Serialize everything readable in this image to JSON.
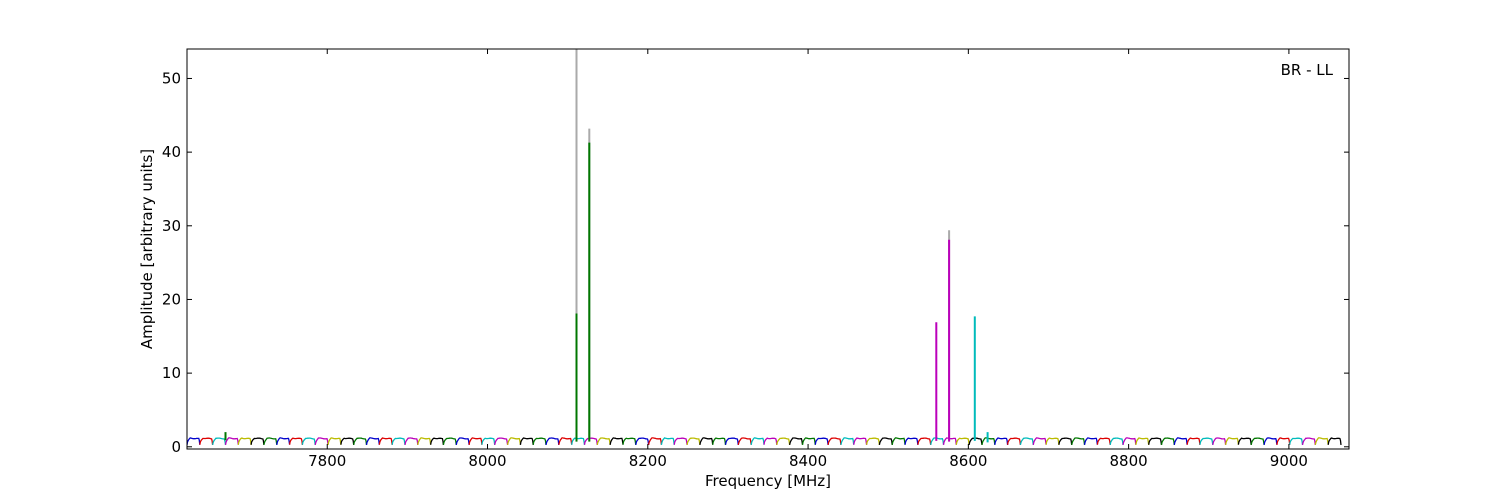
{
  "chart_data": {
    "type": "line",
    "annotation": "BR - LL",
    "xlabel": "Frequency [MHz]",
    "ylabel": "Amplitude [arbitrary units]",
    "xlim": [
      7625,
      9075
    ],
    "ylim": [
      -0.3,
      54
    ],
    "xticks": [
      7800,
      8000,
      8200,
      8400,
      8600,
      8800,
      9000
    ],
    "yticks": [
      0,
      10,
      20,
      30,
      40,
      50
    ],
    "grid": false,
    "channel_width_mhz": 16,
    "channel_colors": [
      "#0000cc",
      "#dd0000",
      "#00bbbb",
      "#bb00bb",
      "#bbbb00",
      "#000000",
      "#007700"
    ],
    "baseline": {
      "first_channel_start": 7625,
      "channel_count": 90,
      "peak_level": 1.2,
      "min_level": 0.25
    },
    "series": [
      {
        "color": "#007700",
        "x": [
          7673,
          7673,
          7673
        ],
        "y": [
          0.9,
          2.0,
          0.9
        ]
      },
      {
        "color": "#aaaaaa",
        "x": [
          8111,
          8111,
          8111
        ],
        "y": [
          0.8,
          54,
          0.8
        ]
      },
      {
        "color": "#007700",
        "x": [
          8111,
          8111,
          8111
        ],
        "y": [
          0.7,
          18.1,
          0.7
        ]
      },
      {
        "color": "#aaaaaa",
        "x": [
          8127,
          8127,
          8127
        ],
        "y": [
          0.8,
          43.2,
          0.8
        ]
      },
      {
        "color": "#007700",
        "x": [
          8127,
          8127,
          8127
        ],
        "y": [
          0.7,
          41.3,
          0.7
        ]
      },
      {
        "color": "#bb00bb",
        "x": [
          8560,
          8560,
          8560
        ],
        "y": [
          0.8,
          16.9,
          0.8
        ]
      },
      {
        "color": "#aaaaaa",
        "x": [
          8576,
          8576,
          8576
        ],
        "y": [
          0.8,
          29.4,
          0.8
        ]
      },
      {
        "color": "#bb00bb",
        "x": [
          8576,
          8576,
          8576
        ],
        "y": [
          0.7,
          28.1,
          0.7
        ]
      },
      {
        "color": "#00bbbb",
        "x": [
          8608,
          8608,
          8608
        ],
        "y": [
          0.8,
          17.7,
          0.8
        ]
      },
      {
        "color": "#00bbbb",
        "x": [
          8624,
          8624,
          8624
        ],
        "y": [
          0.6,
          2.0,
          0.6
        ]
      }
    ]
  }
}
